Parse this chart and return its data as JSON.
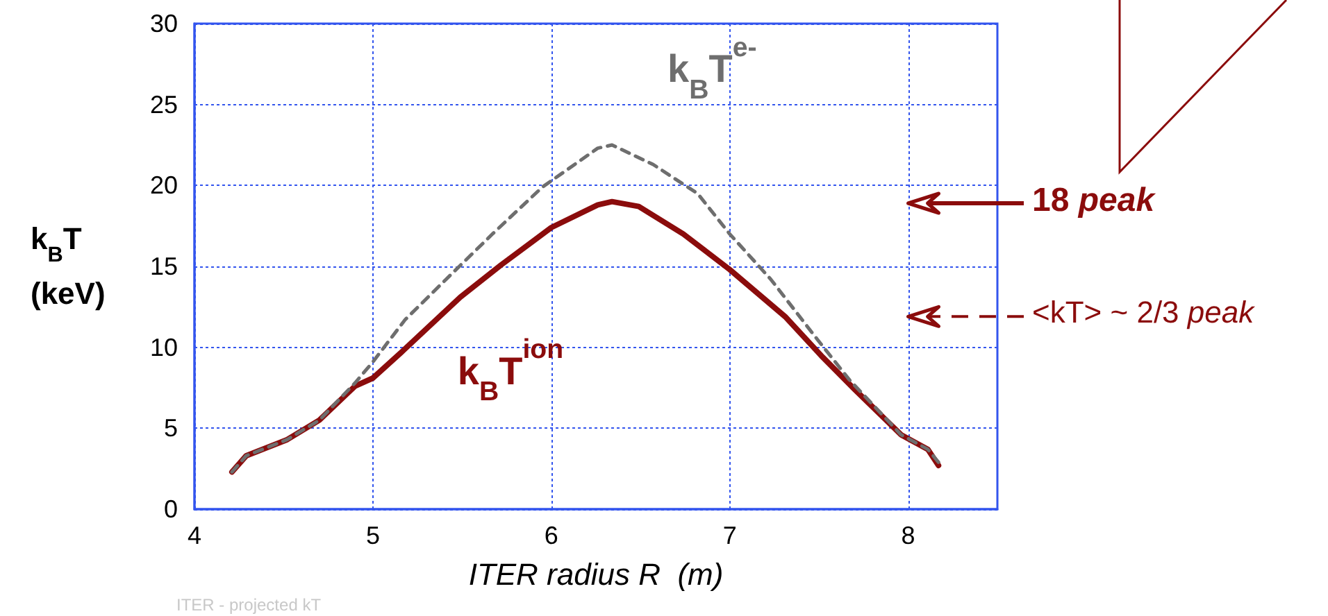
{
  "chart_data": {
    "type": "line",
    "xlabel": "ITER radius R  (m)",
    "ylabel": "k$_{B}$T (keV)",
    "xlim": [
      4,
      8.5
    ],
    "xticks": [
      4,
      5,
      6,
      7,
      8
    ],
    "ylim": [
      0,
      30
    ],
    "yticks": [
      0,
      5,
      10,
      15,
      20,
      25,
      30
    ],
    "grid": true,
    "marker": "none",
    "series": [
      {
        "name": "k$_{B}$T$^{ion}$",
        "color": "#8b0c0c",
        "line_style": "solid",
        "x": [
          4.21,
          4.29,
          4.52,
          4.7,
          4.9,
          5.0,
          5.16,
          5.49,
          5.72,
          6.0,
          6.26,
          6.34,
          6.49,
          6.74,
          7.0,
          7.31,
          7.52,
          7.7,
          7.96,
          8.11,
          8.17
        ],
        "values": [
          2.3,
          3.3,
          4.3,
          5.5,
          7.6,
          8.1,
          9.7,
          13.1,
          15.1,
          17.4,
          18.8,
          19.0,
          18.7,
          17.0,
          14.8,
          11.9,
          9.4,
          7.4,
          4.6,
          3.7,
          2.7
        ]
      },
      {
        "name": "k$_{B}$T$^{e-}$",
        "color": "#6e6e6e",
        "line_style": "dashed",
        "x": [
          4.21,
          4.29,
          4.52,
          4.7,
          4.9,
          5.0,
          5.18,
          5.41,
          5.67,
          5.95,
          6.26,
          6.34,
          6.57,
          6.82,
          7.0,
          7.23,
          7.49,
          7.67,
          7.96,
          8.11,
          8.17
        ],
        "values": [
          2.3,
          3.3,
          4.3,
          5.5,
          7.8,
          9.1,
          11.7,
          14.2,
          17.0,
          19.9,
          22.3,
          22.5,
          21.3,
          19.5,
          17.0,
          14.2,
          10.5,
          8.0,
          4.6,
          3.7,
          2.9
        ]
      }
    ],
    "ref_lines": [
      {
        "axis": "y",
        "value": 18.9,
        "label": "18 peak",
        "color": "#8b0c0c",
        "line_style": "solid"
      },
      {
        "axis": "y",
        "value": 11.9,
        "label": "<kT> ~ 2/3 peak",
        "color": "#8b0c0c",
        "line_style": "dashed"
      }
    ],
    "annotations": [
      "ITER - projected kT"
    ]
  }
}
